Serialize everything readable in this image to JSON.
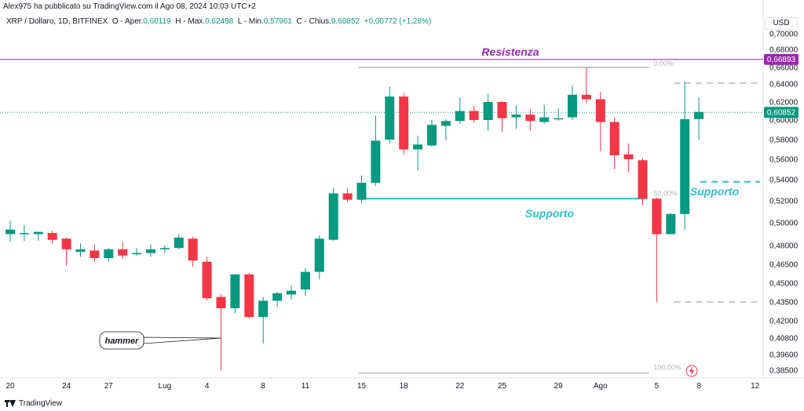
{
  "header": {
    "published": "Alex975 ha pubblicato su TradingView.com il Ago 08, 2024 10:03 UTC+2",
    "symbol": "XRP / Dollaro, 1D, BITFINEX",
    "o_label": "O - Aper.",
    "o_value": "0,60119",
    "h_label": "H - Max.",
    "h_value": "0,62498",
    "l_label": "L - Min.",
    "l_value": "0,57961",
    "c_label": "C - Chius.",
    "c_value": "0,60852",
    "change": "+0,00772 (+1,28%)",
    "currency": "USD"
  },
  "footer": {
    "brand": "TradingView"
  },
  "colors": {
    "up": "#089981",
    "down": "#f23645",
    "resistance": "#9c27b0",
    "support": "#2fbfcf",
    "fib": "#c4c6cc",
    "axis_text": "#131722"
  },
  "chart_data": {
    "type": "candlestick",
    "y_axis": {
      "min": 0.38,
      "max": 0.7,
      "scale": "log",
      "ticks": [
        "0,70000",
        "0,68000",
        "0,66000",
        "0,64000",
        "0,62000",
        "0,60000",
        "0,58000",
        "0,56000",
        "0,54000",
        "0,52000",
        "0,50000",
        "0,48000",
        "0,46500",
        "0,45000",
        "0,43500",
        "0,42000",
        "0,40800",
        "0,39600",
        "0,38500"
      ],
      "tick_values": [
        0.7,
        0.68,
        0.66,
        0.64,
        0.62,
        0.6,
        0.58,
        0.56,
        0.54,
        0.52,
        0.5,
        0.48,
        0.465,
        0.45,
        0.435,
        0.42,
        0.408,
        0.396,
        0.385
      ]
    },
    "x_axis": {
      "labels": [
        "20",
        "24",
        "27",
        "Lug",
        "4",
        "8",
        "11",
        "15",
        "18",
        "22",
        "25",
        "29",
        "Ago",
        "5",
        "8",
        "12"
      ],
      "label_index": [
        0,
        4,
        7,
        11,
        14,
        18,
        21,
        25,
        28,
        32,
        35,
        39,
        42,
        46,
        49,
        53
      ]
    },
    "candles": [
      {
        "o": 0.49,
        "h": 0.502,
        "l": 0.483,
        "c": 0.494
      },
      {
        "o": 0.491,
        "h": 0.498,
        "l": 0.484,
        "c": 0.491
      },
      {
        "o": 0.49,
        "h": 0.492,
        "l": 0.484,
        "c": 0.492
      },
      {
        "o": 0.491,
        "h": 0.493,
        "l": 0.482,
        "c": 0.485
      },
      {
        "o": 0.486,
        "h": 0.487,
        "l": 0.464,
        "c": 0.477
      },
      {
        "o": 0.475,
        "h": 0.482,
        "l": 0.471,
        "c": 0.477
      },
      {
        "o": 0.476,
        "h": 0.481,
        "l": 0.467,
        "c": 0.47
      },
      {
        "o": 0.47,
        "h": 0.478,
        "l": 0.467,
        "c": 0.477
      },
      {
        "o": 0.477,
        "h": 0.483,
        "l": 0.469,
        "c": 0.472
      },
      {
        "o": 0.473,
        "h": 0.478,
        "l": 0.472,
        "c": 0.474
      },
      {
        "o": 0.474,
        "h": 0.481,
        "l": 0.471,
        "c": 0.477
      },
      {
        "o": 0.477,
        "h": 0.48,
        "l": 0.474,
        "c": 0.478
      },
      {
        "o": 0.478,
        "h": 0.49,
        "l": 0.477,
        "c": 0.487
      },
      {
        "o": 0.486,
        "h": 0.488,
        "l": 0.463,
        "c": 0.468
      },
      {
        "o": 0.467,
        "h": 0.471,
        "l": 0.436,
        "c": 0.438
      },
      {
        "o": 0.439,
        "h": 0.441,
        "l": 0.385,
        "c": 0.43
      },
      {
        "o": 0.43,
        "h": 0.457,
        "l": 0.426,
        "c": 0.457
      },
      {
        "o": 0.457,
        "h": 0.458,
        "l": 0.422,
        "c": 0.423
      },
      {
        "o": 0.423,
        "h": 0.439,
        "l": 0.404,
        "c": 0.436
      },
      {
        "o": 0.436,
        "h": 0.443,
        "l": 0.431,
        "c": 0.442
      },
      {
        "o": 0.441,
        "h": 0.448,
        "l": 0.437,
        "c": 0.444
      },
      {
        "o": 0.445,
        "h": 0.462,
        "l": 0.44,
        "c": 0.459
      },
      {
        "o": 0.459,
        "h": 0.489,
        "l": 0.453,
        "c": 0.486
      },
      {
        "o": 0.485,
        "h": 0.532,
        "l": 0.484,
        "c": 0.527
      },
      {
        "o": 0.527,
        "h": 0.532,
        "l": 0.519,
        "c": 0.521
      },
      {
        "o": 0.521,
        "h": 0.544,
        "l": 0.518,
        "c": 0.537
      },
      {
        "o": 0.537,
        "h": 0.605,
        "l": 0.534,
        "c": 0.579
      },
      {
        "o": 0.58,
        "h": 0.637,
        "l": 0.576,
        "c": 0.626
      },
      {
        "o": 0.626,
        "h": 0.63,
        "l": 0.565,
        "c": 0.57
      },
      {
        "o": 0.57,
        "h": 0.584,
        "l": 0.549,
        "c": 0.575
      },
      {
        "o": 0.574,
        "h": 0.6,
        "l": 0.573,
        "c": 0.595
      },
      {
        "o": 0.594,
        "h": 0.601,
        "l": 0.579,
        "c": 0.599
      },
      {
        "o": 0.599,
        "h": 0.625,
        "l": 0.596,
        "c": 0.61
      },
      {
        "o": 0.61,
        "h": 0.616,
        "l": 0.597,
        "c": 0.6
      },
      {
        "o": 0.6,
        "h": 0.629,
        "l": 0.589,
        "c": 0.62
      },
      {
        "o": 0.62,
        "h": 0.621,
        "l": 0.588,
        "c": 0.602
      },
      {
        "o": 0.603,
        "h": 0.616,
        "l": 0.591,
        "c": 0.606
      },
      {
        "o": 0.606,
        "h": 0.612,
        "l": 0.589,
        "c": 0.599
      },
      {
        "o": 0.598,
        "h": 0.617,
        "l": 0.596,
        "c": 0.603
      },
      {
        "o": 0.602,
        "h": 0.613,
        "l": 0.599,
        "c": 0.602
      },
      {
        "o": 0.603,
        "h": 0.638,
        "l": 0.6,
        "c": 0.628
      },
      {
        "o": 0.628,
        "h": 0.66,
        "l": 0.619,
        "c": 0.623
      },
      {
        "o": 0.623,
        "h": 0.631,
        "l": 0.568,
        "c": 0.598
      },
      {
        "o": 0.598,
        "h": 0.603,
        "l": 0.55,
        "c": 0.564
      },
      {
        "o": 0.565,
        "h": 0.576,
        "l": 0.547,
        "c": 0.56
      },
      {
        "o": 0.559,
        "h": 0.561,
        "l": 0.516,
        "c": 0.522
      },
      {
        "o": 0.522,
        "h": 0.523,
        "l": 0.435,
        "c": 0.49
      },
      {
        "o": 0.49,
        "h": 0.509,
        "l": 0.49,
        "c": 0.508
      },
      {
        "o": 0.508,
        "h": 0.643,
        "l": 0.494,
        "c": 0.601
      },
      {
        "o": 0.601,
        "h": 0.625,
        "l": 0.58,
        "c": 0.609
      }
    ],
    "horizontal_lines": [
      {
        "name": "Resistenza",
        "value": 0.66893,
        "label": "0,66893",
        "color": "#9c27b0"
      }
    ],
    "current_price": {
      "value": 0.60852,
      "label": "0,60852"
    },
    "support_line": {
      "value": 0.522,
      "from_index": 25,
      "to_index": 46,
      "label": "Supporto"
    },
    "support_line_2": {
      "value": 0.538,
      "from_index": 49,
      "to_index": 57,
      "label": "Supporto"
    },
    "fib_retracement": {
      "top": 0.66,
      "bottom": 0.383,
      "from_index": 25,
      "to_index": 46,
      "levels": [
        {
          "label": "0,00%",
          "value": 0.66
        },
        {
          "label": "50,00%",
          "value": 0.522
        },
        {
          "label": "100,00%",
          "value": 0.383
        }
      ]
    },
    "right_dashed": [
      0.641,
      0.435
    ],
    "annotations": [
      {
        "text": "Resistenza",
        "value": 0.673,
        "index": 38
      },
      {
        "text": "Supporto",
        "value": 0.505,
        "index": 37
      },
      {
        "text": "Supporto",
        "value": 0.53,
        "index": 52
      },
      {
        "text": "hammer",
        "value": 0.406,
        "index": 8,
        "target_index": 15
      }
    ]
  }
}
